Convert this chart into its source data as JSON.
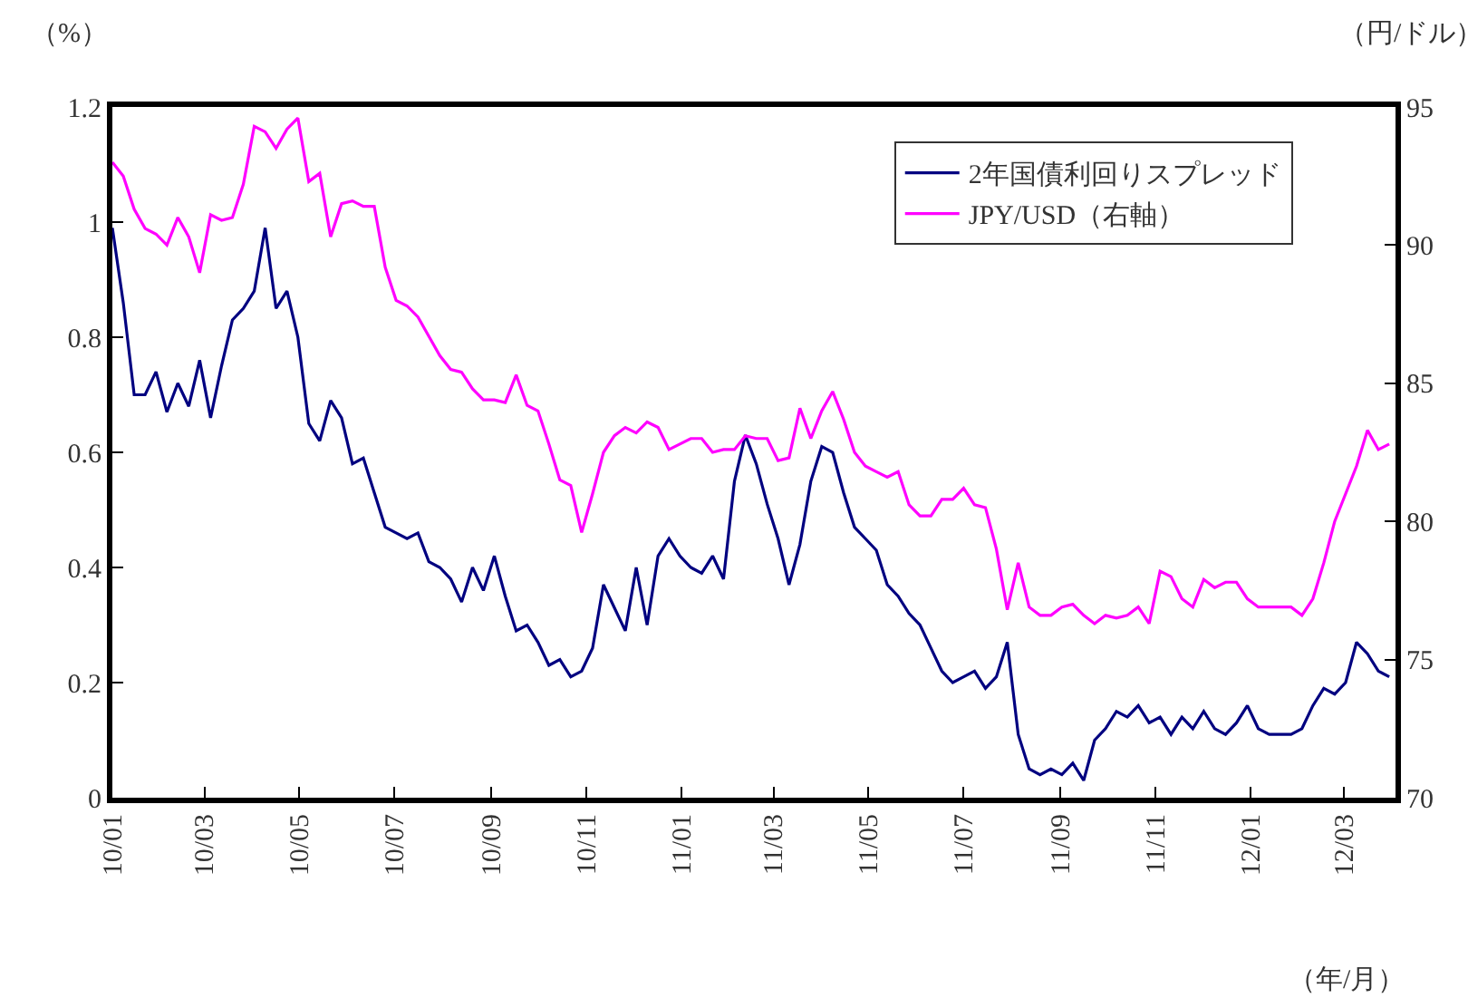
{
  "chart_data": {
    "type": "line",
    "xlabel": "（年/月）",
    "ylabel": "（%）",
    "y2label": "（円/ドル）",
    "x": [
      "2010-01-01",
      "2010-01-08",
      "2010-01-15",
      "2010-01-22",
      "2010-01-29",
      "2010-02-05",
      "2010-02-12",
      "2010-02-19",
      "2010-02-26",
      "2010-03-05",
      "2010-03-12",
      "2010-03-19",
      "2010-03-26",
      "2010-04-02",
      "2010-04-09",
      "2010-04-16",
      "2010-04-23",
      "2010-04-30",
      "2010-05-07",
      "2010-05-14",
      "2010-05-21",
      "2010-05-28",
      "2010-06-04",
      "2010-06-11",
      "2010-06-18",
      "2010-06-25",
      "2010-07-02",
      "2010-07-09",
      "2010-07-16",
      "2010-07-23",
      "2010-07-30",
      "2010-08-06",
      "2010-08-13",
      "2010-08-20",
      "2010-08-27",
      "2010-09-03",
      "2010-09-10",
      "2010-09-17",
      "2010-09-24",
      "2010-10-01",
      "2010-10-08",
      "2010-10-15",
      "2010-10-22",
      "2010-10-29",
      "2010-11-05",
      "2010-11-12",
      "2010-11-19",
      "2010-11-26",
      "2010-12-03",
      "2010-12-10",
      "2010-12-17",
      "2010-12-24",
      "2010-12-31",
      "2011-01-07",
      "2011-01-14",
      "2011-01-21",
      "2011-01-28",
      "2011-02-04",
      "2011-02-11",
      "2011-02-18",
      "2011-02-25",
      "2011-03-04",
      "2011-03-11",
      "2011-03-18",
      "2011-03-25",
      "2011-04-01",
      "2011-04-08",
      "2011-04-15",
      "2011-04-22",
      "2011-04-29",
      "2011-05-06",
      "2011-05-13",
      "2011-05-20",
      "2011-05-27",
      "2011-06-03",
      "2011-06-10",
      "2011-06-17",
      "2011-06-24",
      "2011-07-01",
      "2011-07-08",
      "2011-07-15",
      "2011-07-22",
      "2011-07-29",
      "2011-08-05",
      "2011-08-12",
      "2011-08-19",
      "2011-08-26",
      "2011-09-02",
      "2011-09-09",
      "2011-09-16",
      "2011-09-23",
      "2011-09-30",
      "2011-10-07",
      "2011-10-14",
      "2011-10-21",
      "2011-10-28",
      "2011-11-04",
      "2011-11-11",
      "2011-11-18",
      "2011-11-25",
      "2011-12-02",
      "2011-12-09",
      "2011-12-16",
      "2011-12-23",
      "2011-12-30",
      "2012-01-06",
      "2012-01-13",
      "2012-01-20",
      "2012-01-27",
      "2012-02-03",
      "2012-02-10",
      "2012-02-17",
      "2012-02-24",
      "2012-03-02",
      "2012-03-09",
      "2012-03-16",
      "2012-03-23",
      "2012-03-30"
    ],
    "series": [
      {
        "name": "2年国債利回りスプレッド",
        "color": "#000080",
        "values": [
          0.99,
          0.86,
          0.7,
          0.7,
          0.74,
          0.67,
          0.72,
          0.68,
          0.76,
          0.66,
          0.75,
          0.83,
          0.85,
          0.88,
          0.99,
          0.85,
          0.88,
          0.8,
          0.65,
          0.62,
          0.69,
          0.66,
          0.58,
          0.59,
          0.53,
          0.47,
          0.46,
          0.45,
          0.46,
          0.41,
          0.4,
          0.38,
          0.34,
          0.4,
          0.36,
          0.42,
          0.35,
          0.29,
          0.3,
          0.27,
          0.23,
          0.24,
          0.21,
          0.22,
          0.26,
          0.37,
          0.33,
          0.29,
          0.4,
          0.3,
          0.42,
          0.45,
          0.42,
          0.4,
          0.39,
          0.42,
          0.38,
          0.55,
          0.63,
          0.58,
          0.51,
          0.45,
          0.37,
          0.44,
          0.55,
          0.61,
          0.6,
          0.53,
          0.47,
          0.45,
          0.43,
          0.37,
          0.35,
          0.32,
          0.3,
          0.26,
          0.22,
          0.2,
          0.21,
          0.22,
          0.19,
          0.21,
          0.27,
          0.11,
          0.05,
          0.04,
          0.05,
          0.04,
          0.06,
          0.03,
          0.1,
          0.12,
          0.15,
          0.14,
          0.16,
          0.13,
          0.14,
          0.11,
          0.14,
          0.12,
          0.15,
          0.12,
          0.11,
          0.13,
          0.16,
          0.12,
          0.11,
          0.11,
          0.11,
          0.12,
          0.16,
          0.19,
          0.18,
          0.2,
          0.27,
          0.25,
          0.22,
          0.21
        ]
      },
      {
        "name": "JPY/USD（右軸）",
        "color": "#ff00ff",
        "axis": "y2",
        "values": [
          93.0,
          92.5,
          91.3,
          90.6,
          90.4,
          90.0,
          91.0,
          90.3,
          89.0,
          91.1,
          90.9,
          91.0,
          92.2,
          94.3,
          94.1,
          93.5,
          94.2,
          94.6,
          92.3,
          92.6,
          90.3,
          91.5,
          91.6,
          91.4,
          91.4,
          89.2,
          88.0,
          87.8,
          87.4,
          86.7,
          86.0,
          85.5,
          85.4,
          84.8,
          84.4,
          84.4,
          84.3,
          85.3,
          84.2,
          84.0,
          82.8,
          81.5,
          81.3,
          79.6,
          81.0,
          82.5,
          83.1,
          83.4,
          83.2,
          83.6,
          83.4,
          82.6,
          82.8,
          83.0,
          83.0,
          82.5,
          82.6,
          82.6,
          83.1,
          83.0,
          83.0,
          82.2,
          82.3,
          84.1,
          83.0,
          84.0,
          84.7,
          83.7,
          82.5,
          82.0,
          81.8,
          81.6,
          81.8,
          80.6,
          80.2,
          80.2,
          80.8,
          80.8,
          81.2,
          80.6,
          80.5,
          79.0,
          76.8,
          78.5,
          76.9,
          76.6,
          76.6,
          76.9,
          77.0,
          76.6,
          76.3,
          76.6,
          76.5,
          76.6,
          76.9,
          76.3,
          78.2,
          78.0,
          77.2,
          76.9,
          77.9,
          77.6,
          77.8,
          77.8,
          77.2,
          76.9,
          76.9,
          76.9,
          76.9,
          76.6,
          77.2,
          78.5,
          80.0,
          81.0,
          82.0,
          83.3,
          82.6,
          82.8
        ]
      }
    ],
    "xlim": [
      "2010-01-01",
      "2012-04-03"
    ],
    "xticks": [
      {
        "value": "2010-01-01",
        "label": "10/01"
      },
      {
        "value": "2010-03-01",
        "label": "10/03"
      },
      {
        "value": "2010-05-01",
        "label": "10/05"
      },
      {
        "value": "2010-07-01",
        "label": "10/07"
      },
      {
        "value": "2010-09-01",
        "label": "10/09"
      },
      {
        "value": "2010-11-01",
        "label": "10/11"
      },
      {
        "value": "2011-01-01",
        "label": "11/01"
      },
      {
        "value": "2011-03-01",
        "label": "11/03"
      },
      {
        "value": "2011-05-01",
        "label": "11/05"
      },
      {
        "value": "2011-07-01",
        "label": "11/07"
      },
      {
        "value": "2011-09-01",
        "label": "11/09"
      },
      {
        "value": "2011-11-01",
        "label": "11/11"
      },
      {
        "value": "2012-01-01",
        "label": "12/01"
      },
      {
        "value": "2012-03-01",
        "label": "12/03"
      }
    ],
    "ylim": [
      0,
      1.2
    ],
    "yticks": [
      0,
      0.2,
      0.4,
      0.6,
      0.8,
      1,
      1.2
    ],
    "y2lim": [
      70,
      95
    ],
    "y2ticks": [
      70,
      75,
      80,
      85,
      90,
      95
    ],
    "legend": "top right"
  }
}
